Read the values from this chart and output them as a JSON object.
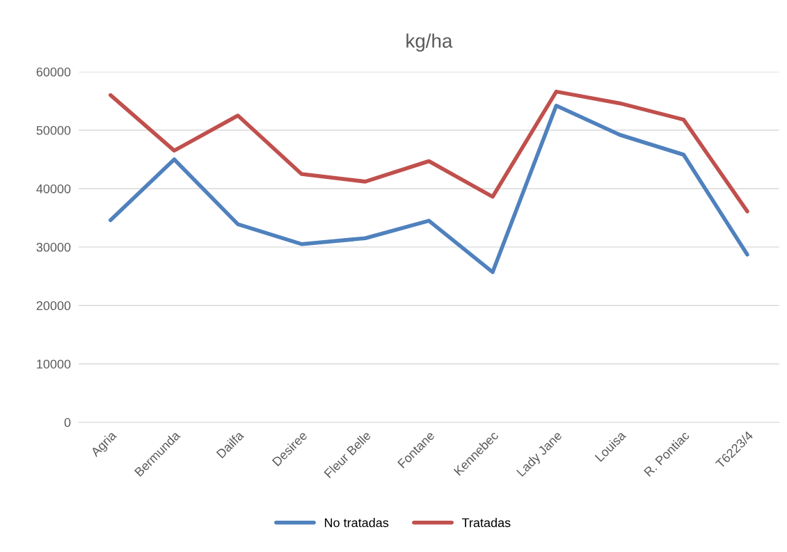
{
  "chart_data": {
    "type": "line",
    "title": "kg/ha",
    "categories": [
      "Agria",
      "Bermunda",
      "Dailfa",
      "Desiree",
      "Fleur Belle",
      "Fontane",
      "Kennebec",
      "Lady Jane",
      "Louisa",
      "R. Pontiac",
      "T6223/4"
    ],
    "series": [
      {
        "name": "No tratadas",
        "color": "#4f81bd",
        "values": [
          34600,
          45000,
          33900,
          30500,
          31500,
          34500,
          25700,
          54200,
          49200,
          45800,
          28700
        ]
      },
      {
        "name": "Tratadas",
        "color": "#c0504d",
        "values": [
          56000,
          46500,
          52500,
          42500,
          41200,
          44700,
          38600,
          56600,
          54600,
          51800,
          36100
        ]
      }
    ],
    "ylim": [
      0,
      60000
    ],
    "yticks": [
      0,
      10000,
      20000,
      30000,
      40000,
      50000,
      60000
    ],
    "grid": "y",
    "legend": "bottom",
    "marker": "none",
    "line_style": "solid"
  }
}
